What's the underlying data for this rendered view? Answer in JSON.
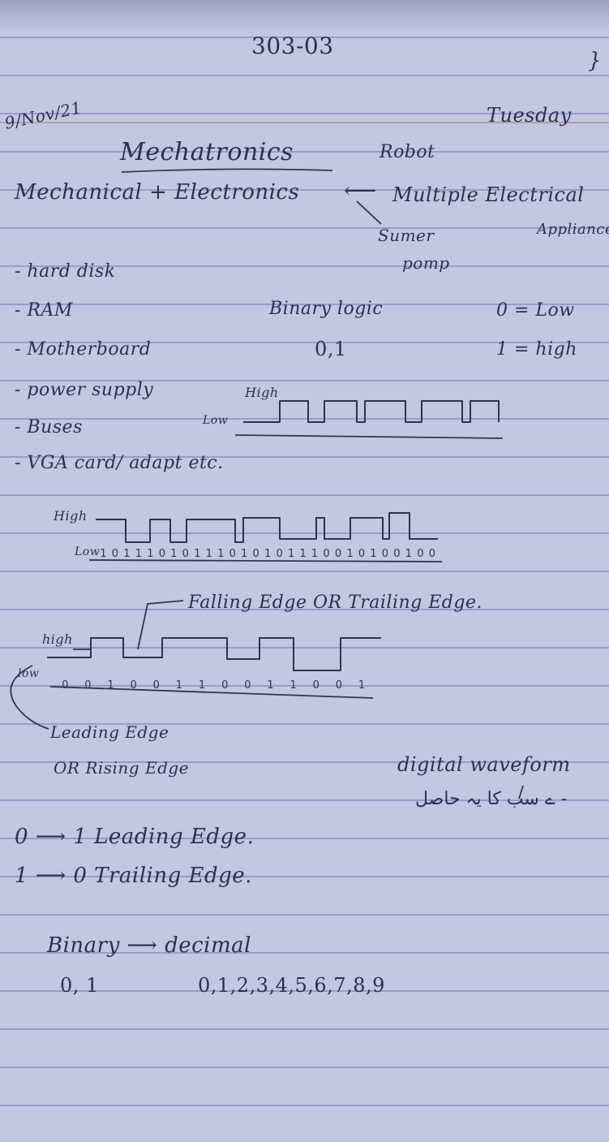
{
  "header": {
    "course_code": "303-03",
    "date": "9/Nov/21",
    "day": "Tuesday",
    "corner_mark": "}"
  },
  "title": {
    "main": "Mechatronics",
    "side_note": "Robot"
  },
  "definition": {
    "left": "Mechanical + Electronics",
    "arrow": "⟵",
    "right": "Multiple Electrical",
    "right2": "Appliance",
    "example1": "Sumer",
    "example2": "pomp"
  },
  "components": [
    "- hard disk",
    "- RAM",
    "- Motherboard",
    "- power supply",
    "- Buses",
    "- VGA card/ adapt etc."
  ],
  "binary_logic": {
    "title": "Binary logic",
    "values": "0,1",
    "zero": "0 = Low",
    "one": "1 = high"
  },
  "waveform1": {
    "high": "High",
    "low": "Low"
  },
  "waveform2": {
    "high": "High",
    "low": "Low",
    "bits": [
      "1",
      "0",
      "1",
      "1",
      "1",
      "0",
      "1",
      "0",
      "1",
      "1",
      "1",
      "0",
      "1",
      "0",
      "1",
      "0",
      "1",
      "1",
      "1",
      "0",
      "0",
      "1",
      "0",
      "1",
      "0",
      "0",
      "1",
      "0",
      "0"
    ]
  },
  "waveform3": {
    "high": "high",
    "low": "low",
    "falling_label": "Falling Edge OR Trailing Edge.",
    "leading_label": "Leading Edge",
    "rising_label": "OR Rising Edge",
    "bits": [
      "0",
      "0",
      "1",
      "0",
      "0",
      "1",
      "1",
      "0",
      "0",
      "1",
      "1",
      "0",
      "0",
      "1"
    ]
  },
  "digital_waveform": {
    "label": "digital waveform",
    "urdu": "ے سب کا یہ حاصل -"
  },
  "edges": {
    "leading": "0 ⟶ 1  Leading Edge.",
    "trailing": "1 ⟶ 0  Trailing Edge."
  },
  "conversion": {
    "label": "Binary ⟶ decimal",
    "binary_values": "0, 1",
    "decimal_values": "0,1,2,3,4,5,6,7,8,9"
  }
}
